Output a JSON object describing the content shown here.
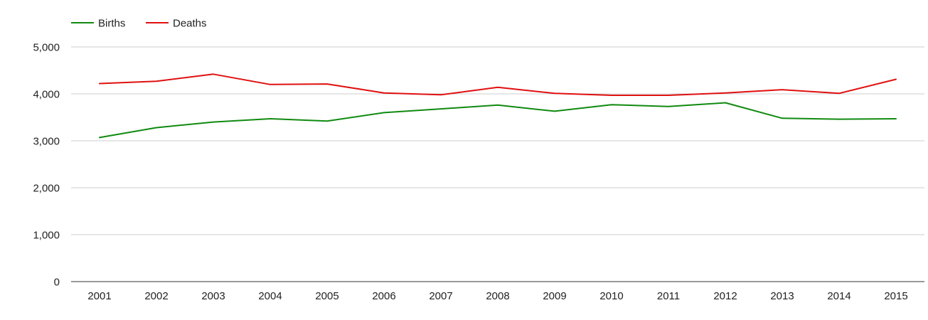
{
  "chart_data": {
    "type": "line",
    "categories": [
      "2001",
      "2002",
      "2003",
      "2004",
      "2005",
      "2006",
      "2007",
      "2008",
      "2009",
      "2010",
      "2011",
      "2012",
      "2013",
      "2014",
      "2015"
    ],
    "series": [
      {
        "name": "Births",
        "color": "#108a10",
        "values": [
          3070,
          3280,
          3400,
          3470,
          3420,
          3600,
          3680,
          3760,
          3630,
          3770,
          3730,
          3810,
          3480,
          3460,
          3470
        ]
      },
      {
        "name": "Deaths",
        "color": "#e01010",
        "values": [
          4220,
          4270,
          4420,
          4200,
          4210,
          4020,
          3980,
          4140,
          4010,
          3970,
          3970,
          4020,
          4090,
          4010,
          4310
        ]
      }
    ],
    "yticks": [
      "0",
      "1,000",
      "2,000",
      "3,000",
      "4,000",
      "5,000"
    ],
    "ylim": [
      0,
      5000
    ],
    "grid": true,
    "legend_position": "top-left"
  }
}
